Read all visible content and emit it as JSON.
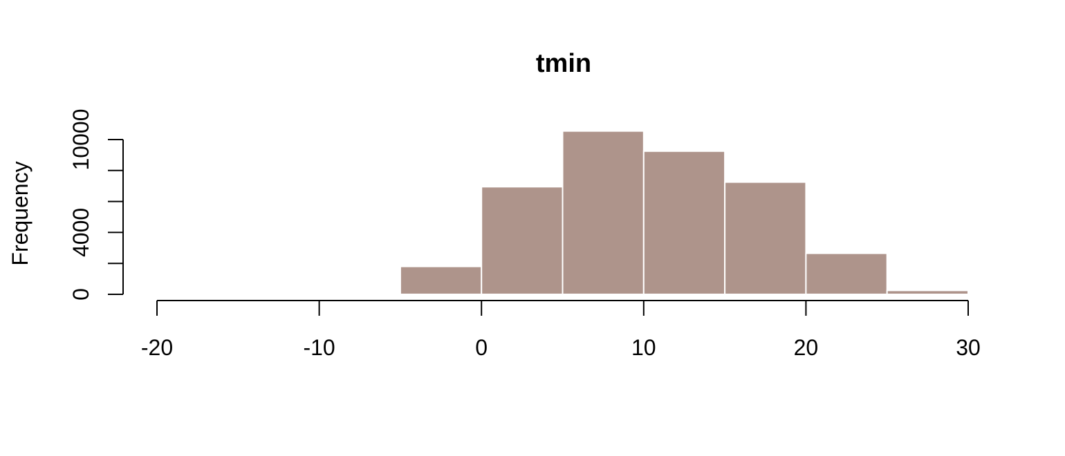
{
  "chart_data": {
    "type": "bar",
    "title": "tmin",
    "xlabel": "",
    "ylabel": "Frequency",
    "bin_edges": [
      -20,
      -15,
      -10,
      -5,
      0,
      5,
      10,
      15,
      20,
      25,
      30
    ],
    "values": [
      10,
      15,
      30,
      1800,
      6950,
      10550,
      9250,
      7250,
      2650,
      250
    ],
    "xlim": [
      -20,
      30
    ],
    "ylim": [
      0,
      10000
    ],
    "x_ticks": [
      -20,
      -10,
      0,
      10,
      20,
      30
    ],
    "y_ticks": [
      0,
      2000,
      4000,
      6000,
      8000,
      10000
    ],
    "x_tick_labels": [
      "-20",
      "-10",
      "0",
      "10",
      "20",
      "30"
    ],
    "y_tick_labels": [
      "0",
      "",
      "4000",
      "",
      "",
      "10000"
    ],
    "bar_color": "#ae948b",
    "bar_edge_color": "#ffffff",
    "grid": false,
    "legend": "none"
  }
}
